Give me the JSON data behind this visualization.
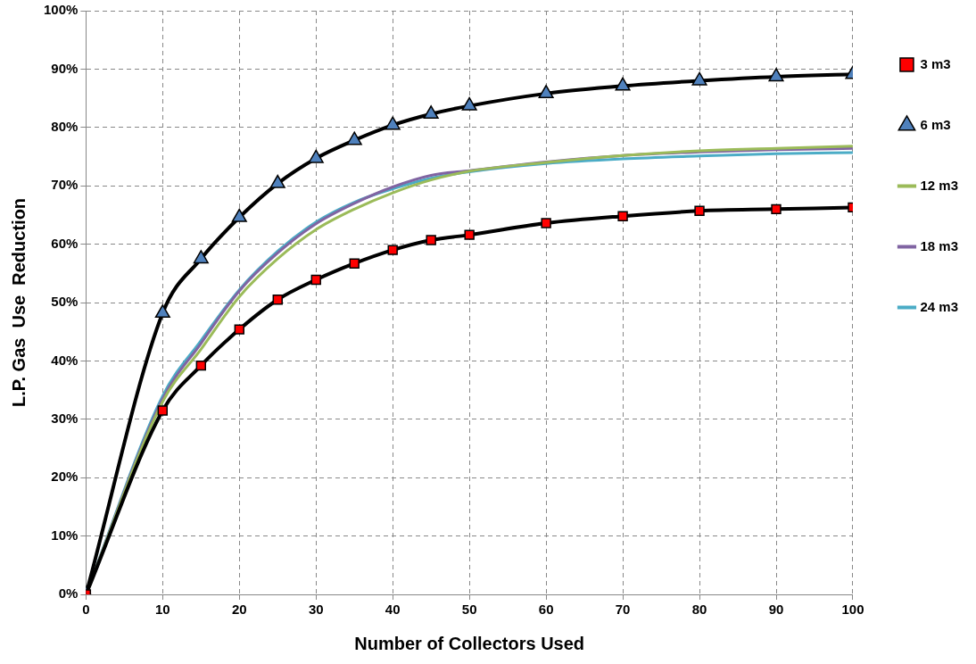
{
  "chart_data": {
    "type": "line",
    "xlabel": "Number of Collectors Used",
    "ylabel": "L.P. Gas  Use  Reduction",
    "x": [
      0,
      10,
      15,
      20,
      25,
      30,
      35,
      40,
      45,
      50,
      60,
      70,
      80,
      90,
      100
    ],
    "xlim": [
      0,
      100
    ],
    "xticks": [
      0,
      10,
      20,
      30,
      40,
      50,
      60,
      70,
      80,
      90,
      100
    ],
    "ylim": [
      0,
      100
    ],
    "yticks": [
      {
        "value": 0,
        "label": "0%"
      },
      {
        "value": 10,
        "label": "10%"
      },
      {
        "value": 20,
        "label": "20%"
      },
      {
        "value": 30,
        "label": "30%"
      },
      {
        "value": 40,
        "label": "40%"
      },
      {
        "value": 50,
        "label": "50%"
      },
      {
        "value": 60,
        "label": "60%"
      },
      {
        "value": 70,
        "label": "70%"
      },
      {
        "value": 80,
        "label": "80%"
      },
      {
        "value": 90,
        "label": "90%"
      },
      {
        "value": 100,
        "label": "100%"
      }
    ],
    "grid": true,
    "legend": "right",
    "line_style": "solid",
    "series": [
      {
        "name": "3 m3",
        "color": "#000000",
        "colors": [
          "#ff0000",
          "#ff0000",
          "#ff0000",
          "#ff0000",
          "#ff0000",
          "#ff0000",
          "#ff0000",
          "#ff0000",
          "#ff0000",
          "#ff0000",
          "#ff0000",
          "#ff0000",
          "#ff0000",
          "#ff0000",
          "#ff0000"
        ],
        "marker": "square",
        "values": [
          0,
          31.5,
          39.2,
          45.4,
          50.5,
          53.9,
          56.7,
          59.0,
          60.7,
          61.6,
          63.6,
          64.8,
          65.7,
          66.0,
          66.3
        ]
      },
      {
        "name": "6 m3",
        "color": "#000000",
        "colors": [
          "#4f81bd",
          "#4f81bd",
          "#4f81bd",
          "#4f81bd",
          "#4f81bd",
          "#4f81bd",
          "#4f81bd",
          "#4f81bd",
          "#4f81bd",
          "#4f81bd",
          "#4f81bd",
          "#4f81bd",
          "#4f81bd",
          "#4f81bd",
          "#4f81bd"
        ],
        "marker": "triangle",
        "values": [
          0,
          48.2,
          57.5,
          64.6,
          70.4,
          74.7,
          77.8,
          80.4,
          82.3,
          83.7,
          85.8,
          87.1,
          88.0,
          88.7,
          89.1
        ]
      },
      {
        "name": "12 m3",
        "color": "#9bbb59",
        "marker": "none",
        "values": [
          0,
          33,
          42,
          51,
          57.5,
          62.5,
          66,
          68.8,
          71,
          72.5,
          74,
          75.2,
          76,
          76.4,
          76.8
        ]
      },
      {
        "name": "18 m3",
        "color": "#8064a2",
        "marker": "none",
        "values": [
          0,
          33.5,
          43,
          52,
          58.5,
          63.5,
          67,
          69.8,
          71.8,
          72.6,
          74.1,
          75.2,
          75.8,
          76.2,
          76.4
        ]
      },
      {
        "name": "24 m3",
        "color": "#4bacc6",
        "marker": "none",
        "values": [
          0,
          34,
          43.5,
          52.2,
          58.8,
          63.8,
          67.2,
          69.5,
          71.3,
          72.4,
          73.8,
          74.6,
          75.1,
          75.5,
          75.7
        ]
      }
    ]
  }
}
